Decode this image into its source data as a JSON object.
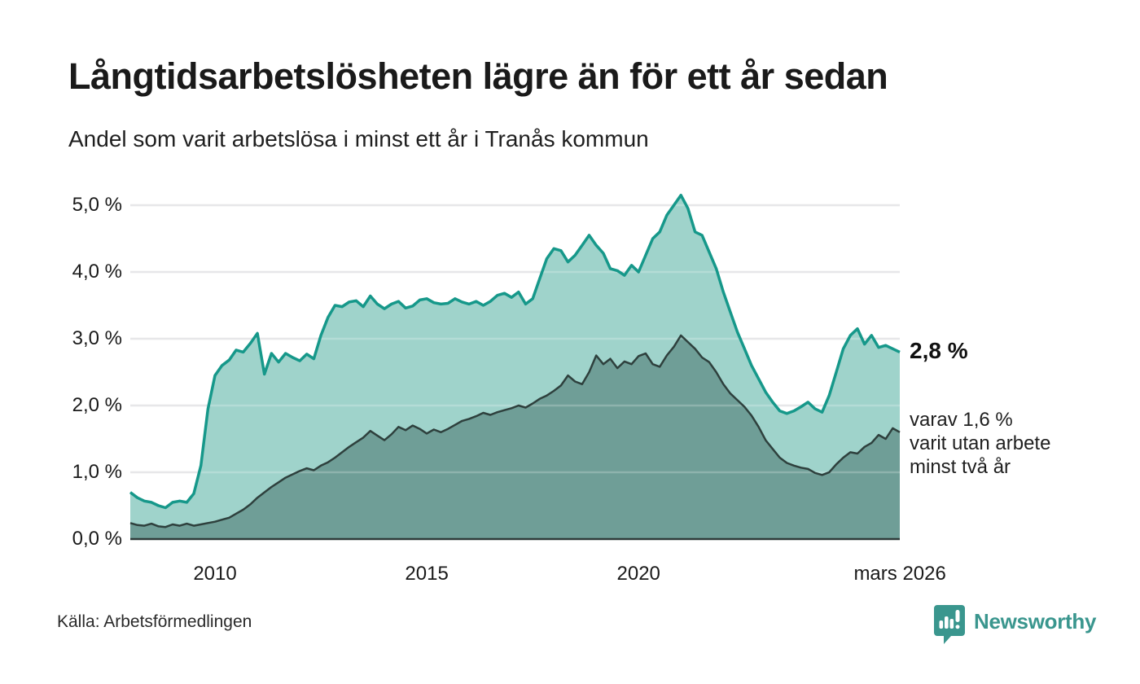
{
  "header": {
    "title": "Långtidsarbetslösheten lägre än för ett år sedan",
    "subtitle": "Andel som varit arbetslösa i minst ett år i Tranås kommun"
  },
  "chart_data": {
    "type": "area",
    "title": "Andel som varit arbetslösa i minst ett år i Tranås kommun",
    "x_start": 2008.0,
    "x_step_years": 0.16667,
    "ylim": [
      0,
      5.5
    ],
    "grid": true,
    "legend_position": "none",
    "y_ticks": [
      {
        "value": 5,
        "label": "5,0 %"
      },
      {
        "value": 4,
        "label": "4,0 %"
      },
      {
        "value": 3,
        "label": "3,0 %"
      },
      {
        "value": 2,
        "label": "2,0 %"
      },
      {
        "value": 1,
        "label": "1,0 %"
      },
      {
        "value": 0,
        "label": "0,0 %"
      }
    ],
    "x_ticks": [
      {
        "value": 2010,
        "label": "2010"
      },
      {
        "value": 2015,
        "label": "2015"
      },
      {
        "value": 2020,
        "label": "2020"
      },
      {
        "value": 2026.17,
        "label": "mars 2026"
      }
    ],
    "series": [
      {
        "name": "Arbetslösa minst ett år",
        "line_color": "#16988a",
        "fill_color": "#9fd3cb",
        "latest_value_pct": 2.8,
        "values": [
          0.7,
          0.62,
          0.57,
          0.55,
          0.5,
          0.47,
          0.55,
          0.57,
          0.55,
          0.68,
          1.1,
          1.95,
          2.45,
          2.6,
          2.68,
          2.83,
          2.8,
          2.93,
          3.08,
          2.47,
          2.78,
          2.65,
          2.78,
          2.72,
          2.67,
          2.77,
          2.7,
          3.05,
          3.32,
          3.5,
          3.48,
          3.55,
          3.57,
          3.48,
          3.64,
          3.52,
          3.45,
          3.52,
          3.56,
          3.46,
          3.49,
          3.58,
          3.6,
          3.54,
          3.52,
          3.53,
          3.6,
          3.55,
          3.52,
          3.56,
          3.5,
          3.56,
          3.65,
          3.68,
          3.62,
          3.7,
          3.52,
          3.6,
          3.9,
          4.2,
          4.35,
          4.32,
          4.15,
          4.25,
          4.4,
          4.55,
          4.4,
          4.28,
          4.05,
          4.02,
          3.95,
          4.1,
          4.0,
          4.25,
          4.5,
          4.6,
          4.85,
          5.0,
          5.15,
          4.95,
          4.6,
          4.55,
          4.3,
          4.05,
          3.7,
          3.4,
          3.1,
          2.85,
          2.6,
          2.4,
          2.2,
          2.05,
          1.92,
          1.88,
          1.92,
          1.98,
          2.05,
          1.95,
          1.9,
          2.15,
          2.5,
          2.85,
          3.05,
          3.15,
          2.92,
          3.05,
          2.87,
          2.9,
          2.85,
          2.8
        ]
      },
      {
        "name": "Arbetslösa minst två år",
        "line_color": "#2e403d",
        "fill_color": "#6f9e97",
        "latest_value_pct": 1.6,
        "values": [
          0.24,
          0.21,
          0.2,
          0.23,
          0.19,
          0.18,
          0.22,
          0.2,
          0.23,
          0.2,
          0.22,
          0.24,
          0.26,
          0.29,
          0.32,
          0.38,
          0.44,
          0.52,
          0.62,
          0.7,
          0.78,
          0.85,
          0.92,
          0.97,
          1.02,
          1.06,
          1.03,
          1.1,
          1.15,
          1.22,
          1.3,
          1.38,
          1.45,
          1.52,
          1.62,
          1.55,
          1.48,
          1.57,
          1.68,
          1.63,
          1.7,
          1.65,
          1.58,
          1.64,
          1.6,
          1.65,
          1.71,
          1.77,
          1.8,
          1.84,
          1.89,
          1.86,
          1.9,
          1.93,
          1.96,
          2.0,
          1.97,
          2.03,
          2.1,
          2.15,
          2.22,
          2.3,
          2.45,
          2.36,
          2.32,
          2.5,
          2.75,
          2.62,
          2.7,
          2.56,
          2.66,
          2.62,
          2.74,
          2.78,
          2.62,
          2.58,
          2.75,
          2.88,
          3.05,
          2.95,
          2.85,
          2.72,
          2.65,
          2.5,
          2.32,
          2.18,
          2.08,
          1.98,
          1.85,
          1.68,
          1.48,
          1.35,
          1.22,
          1.14,
          1.1,
          1.07,
          1.05,
          0.99,
          0.96,
          1.0,
          1.12,
          1.22,
          1.3,
          1.28,
          1.38,
          1.44,
          1.56,
          1.5,
          1.66,
          1.6
        ]
      }
    ],
    "annotations": {
      "latest_value": "2,8 %",
      "secondary_line1": "varav 1,6 %",
      "secondary_line2": "varit utan arbete",
      "secondary_line3": "minst två år"
    }
  },
  "footer": {
    "source": "Källa: Arbetsförmedlingen",
    "brand": "Newsworthy"
  },
  "colors": {
    "grid": "#e0e0e3",
    "axis": "#2e3b39",
    "brand_teal": "#3a968e",
    "background": "#ffffff"
  }
}
